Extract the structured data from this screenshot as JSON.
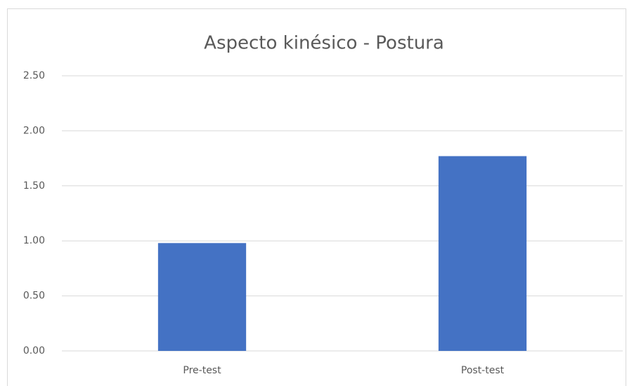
{
  "chart_data": {
    "type": "bar",
    "title": "Aspecto kinésico - Postura",
    "categories": [
      "Pre-test",
      "Post-test"
    ],
    "values": [
      0.98,
      1.77
    ],
    "color": "#4472c4",
    "ylim": [
      0,
      2.5
    ],
    "yticks": [
      {
        "value": 0,
        "label": "0.00"
      },
      {
        "value": 0.5,
        "label": "0.50"
      },
      {
        "value": 1,
        "label": "1.00"
      },
      {
        "value": 1.5,
        "label": "1.50"
      },
      {
        "value": 2,
        "label": "2.00"
      },
      {
        "value": 2.5,
        "label": "2.50"
      }
    ],
    "grid": true
  }
}
